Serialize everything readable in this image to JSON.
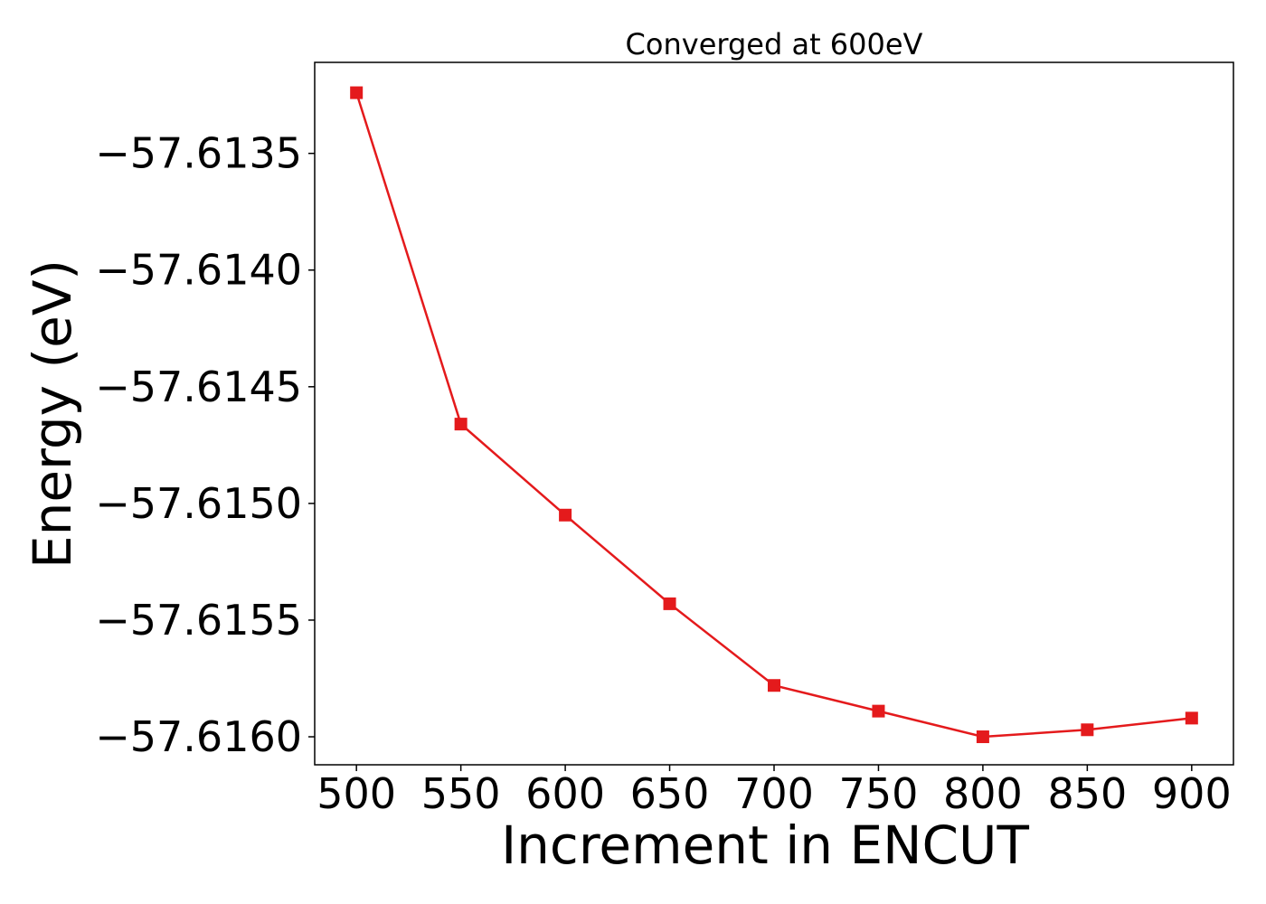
{
  "chart_data": {
    "type": "line",
    "title": "Converged at 600eV",
    "xlabel": "Increment in ENCUT",
    "ylabel": "Energy (eV)",
    "x": [
      500,
      550,
      600,
      650,
      700,
      750,
      800,
      850,
      900
    ],
    "xticks": [
      500,
      550,
      600,
      650,
      700,
      750,
      800,
      850,
      900
    ],
    "xtick_labels": [
      "500",
      "550",
      "600",
      "650",
      "700",
      "750",
      "800",
      "850",
      "900"
    ],
    "yticks": [
      -57.6135,
      -57.614,
      -57.6145,
      -57.615,
      -57.6155,
      -57.616
    ],
    "ytick_labels": [
      "−57.6135",
      "−57.6140",
      "−57.6145",
      "−57.6150",
      "−57.6155",
      "−57.6160"
    ],
    "xlim": [
      480,
      920
    ],
    "ylim": [
      -57.61612,
      -57.61311
    ],
    "grid": false,
    "series": [
      {
        "color": "#e41a1c",
        "marker": "square",
        "values": [
          -57.61324,
          -57.61466,
          -57.61505,
          -57.61543,
          -57.61578,
          -57.61589,
          -57.616,
          -57.61597,
          -57.61592
        ]
      }
    ]
  }
}
